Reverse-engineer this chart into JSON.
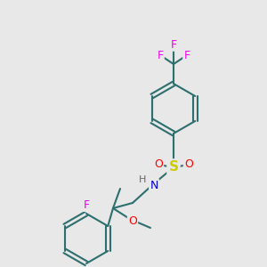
{
  "background_color": "#e8e8e8",
  "bond_color": "#2d6e6e",
  "atom_colors": {
    "F": "#ee00ee",
    "O": "#ff0000",
    "N": "#0000cc",
    "S": "#cccc00",
    "H": "#666666",
    "C": "#2d6e6e"
  },
  "figsize": [
    3.0,
    3.0
  ],
  "dpi": 100
}
